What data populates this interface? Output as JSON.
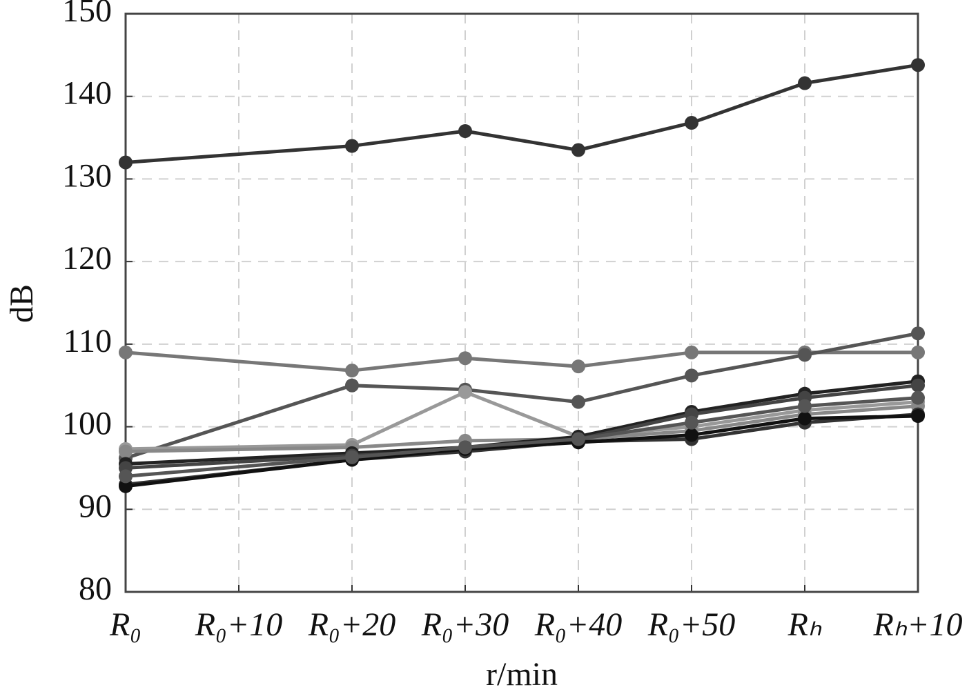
{
  "chart_data": {
    "type": "line",
    "x_label": "r/min",
    "y_label": "dB",
    "x": [
      0,
      20,
      30,
      40,
      50,
      60,
      70
    ],
    "xlim": [
      0,
      70
    ],
    "xticks": [
      {
        "value": 0,
        "label": "R₀"
      },
      {
        "value": 10,
        "label": "R₀+10"
      },
      {
        "value": 20,
        "label": "R₀+20"
      },
      {
        "value": 30,
        "label": "R₀+30"
      },
      {
        "value": 40,
        "label": "R₀+40"
      },
      {
        "value": 50,
        "label": "R₀+50"
      },
      {
        "value": 60,
        "label": "Rₕ"
      },
      {
        "value": 70,
        "label": "Rₕ+10"
      }
    ],
    "ylim": [
      80,
      150
    ],
    "yticks": [
      80,
      90,
      100,
      110,
      120,
      130,
      140,
      150
    ],
    "grid": true,
    "series": [
      {
        "color": "#333333",
        "values": [
          132,
          134,
          135.8,
          133.5,
          136.8,
          141.6,
          143.8
        ]
      },
      {
        "color": "#777777",
        "values": [
          109,
          106.8,
          108.3,
          107.3,
          109,
          109,
          109
        ]
      },
      {
        "color": "#555555",
        "values": [
          96.2,
          105,
          104.5,
          103,
          106.2,
          108.7,
          111.3
        ]
      },
      {
        "color": "#999999",
        "values": [
          97.3,
          97.8,
          104.2,
          98.8,
          100,
          102,
          103
        ]
      },
      {
        "color": "#888888",
        "values": [
          97,
          97.5,
          98.3,
          98.5,
          99.5,
          101.5,
          102.5
        ]
      },
      {
        "color": "#222222",
        "values": [
          95.5,
          96.8,
          97.5,
          98.8,
          101.8,
          104,
          105.5
        ]
      },
      {
        "color": "#444444",
        "values": [
          95,
          96.5,
          97.2,
          98.5,
          101.5,
          103.5,
          105
        ]
      },
      {
        "color": "#333333",
        "values": [
          93,
          96,
          97,
          98.2,
          98.5,
          100.5,
          101.5
        ]
      },
      {
        "color": "#111111",
        "values": [
          92.8,
          96,
          97.3,
          98.1,
          99,
          101,
          101.3
        ]
      },
      {
        "color": "#555555",
        "values": [
          94,
          96.3,
          97.5,
          98.5,
          100.5,
          102.5,
          103.5
        ]
      }
    ]
  }
}
